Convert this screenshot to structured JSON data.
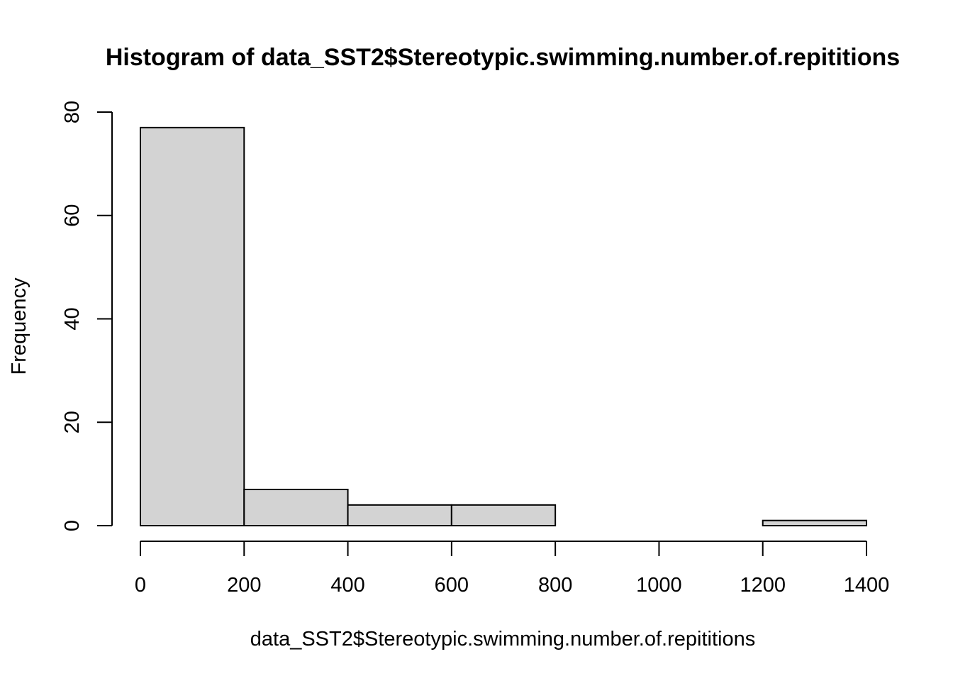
{
  "chart_data": {
    "type": "bar",
    "title": "Histogram of data_SST2$Stereotypic.swimming.number.of.repititions",
    "xlabel": "data_SST2$Stereotypic.swimming.number.of.repititions",
    "ylabel": "Frequency",
    "bins": [
      {
        "from": 0,
        "to": 200,
        "count": 77
      },
      {
        "from": 200,
        "to": 400,
        "count": 7
      },
      {
        "from": 400,
        "to": 600,
        "count": 4
      },
      {
        "from": 600,
        "to": 800,
        "count": 4
      },
      {
        "from": 800,
        "to": 1000,
        "count": 0
      },
      {
        "from": 1000,
        "to": 1200,
        "count": 0
      },
      {
        "from": 1200,
        "to": 1400,
        "count": 1
      }
    ],
    "xlim": [
      0,
      1400
    ],
    "ylim": [
      0,
      80
    ],
    "x_ticks": [
      "0",
      "200",
      "400",
      "600",
      "800",
      "1000",
      "1200",
      "1400"
    ],
    "y_ticks": [
      "0",
      "20",
      "40",
      "60",
      "80"
    ],
    "grid": false,
    "colors": {
      "bar_fill": "#d3d3d3",
      "bar_border": "#000000",
      "axis": "#000000",
      "background": "#ffffff"
    }
  }
}
